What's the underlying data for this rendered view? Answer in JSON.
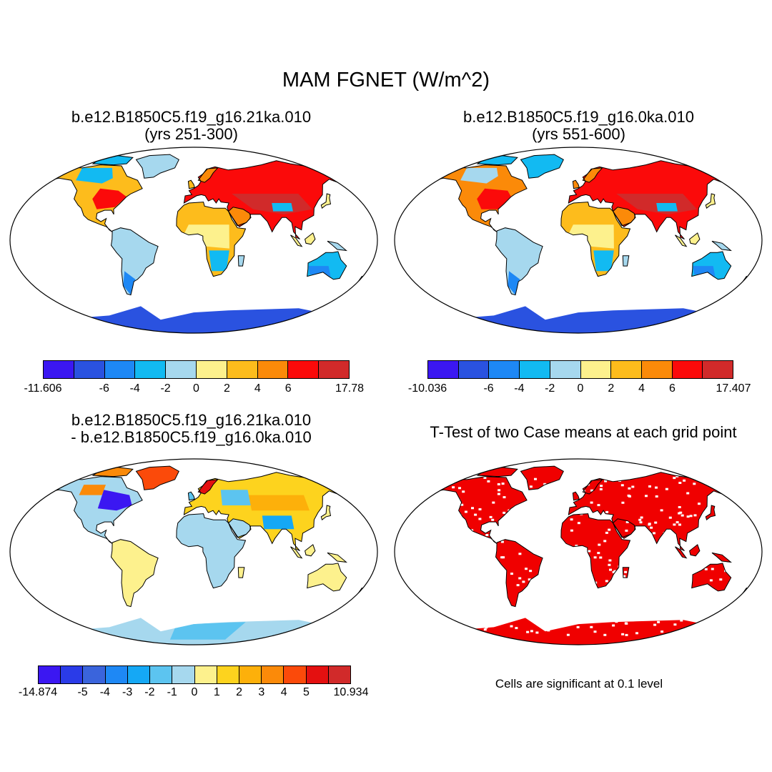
{
  "title": "MAM FGNET (W/m^2)",
  "panels": [
    {
      "id": "p1",
      "title_line1": "b.e12.B1850C5.f19_g16.21ka.010",
      "title_line2": "(yrs 251-300)",
      "colorbar": {
        "colors": [
          "#3b17f2",
          "#2a52e0",
          "#1e88f5",
          "#12baf2",
          "#a6d8ee",
          "#fdf18d",
          "#fdbc1c",
          "#fb8a09",
          "#fb0a0a",
          "#d12a2a"
        ],
        "tick_labels": [
          "-11.606",
          "-6",
          "-4",
          "-2",
          "0",
          "2",
          "4",
          "6",
          "17.78"
        ]
      }
    },
    {
      "id": "p2",
      "title_line1": "b.e12.B1850C5.f19_g16.0ka.010",
      "title_line2": "(yrs 551-600)",
      "colorbar": {
        "colors": [
          "#3b17f2",
          "#2a52e0",
          "#1e88f5",
          "#12baf2",
          "#a6d8ee",
          "#fdf18d",
          "#fdbc1c",
          "#fb8a09",
          "#fb0a0a",
          "#d12a2a"
        ],
        "tick_labels": [
          "-10.036",
          "-6",
          "-4",
          "-2",
          "0",
          "2",
          "4",
          "6",
          "17.407"
        ]
      }
    },
    {
      "id": "p3",
      "title_line1": "b.e12.B1850C5.f19_g16.21ka.010",
      "title_line2": "- b.e12.B1850C5.f19_g16.0ka.010",
      "colorbar": {
        "colors": [
          "#3b17f2",
          "#2a3be8",
          "#3a64dc",
          "#1e88f5",
          "#15a8f5",
          "#5cc4f0",
          "#a6d8ee",
          "#fdf18d",
          "#fdd31e",
          "#fdb00a",
          "#fb8a09",
          "#fb4a0a",
          "#e41010",
          "#d12a2a"
        ],
        "tick_labels": [
          "-14.874",
          "-5",
          "-4",
          "-3",
          "-2",
          "-1",
          "0",
          "1",
          "2",
          "3",
          "4",
          "5",
          "10.934"
        ]
      }
    },
    {
      "id": "p4",
      "title_line1": "T-Test of two Case means at each grid point",
      "title_line2": "",
      "note": "Cells are significant at 0.1 level"
    }
  ],
  "map_colors": {
    "ocean": "#ffffff",
    "coast": "#000000",
    "significant": "#f00000"
  }
}
